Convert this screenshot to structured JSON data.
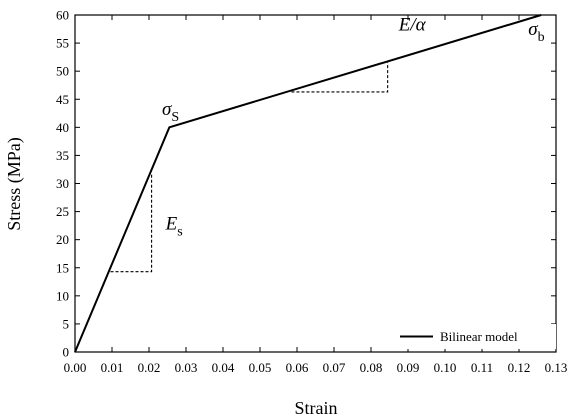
{
  "chart_data": {
    "type": "line",
    "xlabel": "Strain",
    "ylabel": "Stress (MPa)",
    "xlim": [
      0,
      0.13
    ],
    "ylim": [
      0,
      60
    ],
    "x_ticks": [
      0.0,
      0.01,
      0.02,
      0.03,
      0.04,
      0.05,
      0.06,
      0.07,
      0.08,
      0.09,
      0.1,
      0.11,
      0.12,
      0.13
    ],
    "y_ticks": [
      0,
      5,
      10,
      15,
      20,
      25,
      30,
      35,
      40,
      45,
      50,
      55,
      60
    ],
    "x_tick_labels": [
      "0.00",
      "0.01",
      "0.02",
      "0.03",
      "0.04",
      "0.05",
      "0.06",
      "0.07",
      "0.08",
      "0.09",
      "0.10",
      "0.11",
      "0.12",
      "0.13"
    ],
    "y_tick_labels": [
      "0",
      "5",
      "10",
      "15",
      "20",
      "25",
      "30",
      "35",
      "40",
      "45",
      "50",
      "55",
      "60"
    ],
    "grid": false,
    "legend": {
      "position": "bottom-right",
      "entries": [
        "Bilinear model"
      ]
    },
    "series": [
      {
        "name": "Bilinear model",
        "x": [
          0.0,
          0.0255,
          0.126
        ],
        "y": [
          0,
          40,
          60
        ],
        "color": "#000000"
      }
    ],
    "slope_triangles": [
      {
        "x": [
          0.0096,
          0.0207
        ],
        "y": [
          14.3,
          31.6
        ]
      },
      {
        "x": [
          0.0585,
          0.0845
        ],
        "y": [
          46.3,
          51.5
        ]
      }
    ],
    "annotations": [
      {
        "id": "sigma_s",
        "symbol": "σ",
        "sub": "S",
        "x": 0.0235,
        "y": 42.2
      },
      {
        "id": "sigma_b",
        "symbol": "σ",
        "sub": "b",
        "x": 0.1225,
        "y": 56.4
      },
      {
        "id": "E_s",
        "symbol": "E",
        "sub": "s",
        "x": 0.0245,
        "y": 21.8
      },
      {
        "id": "E_alpha",
        "symbol": "E/α",
        "sub": "",
        "x": 0.0875,
        "y": 57.2
      }
    ]
  }
}
